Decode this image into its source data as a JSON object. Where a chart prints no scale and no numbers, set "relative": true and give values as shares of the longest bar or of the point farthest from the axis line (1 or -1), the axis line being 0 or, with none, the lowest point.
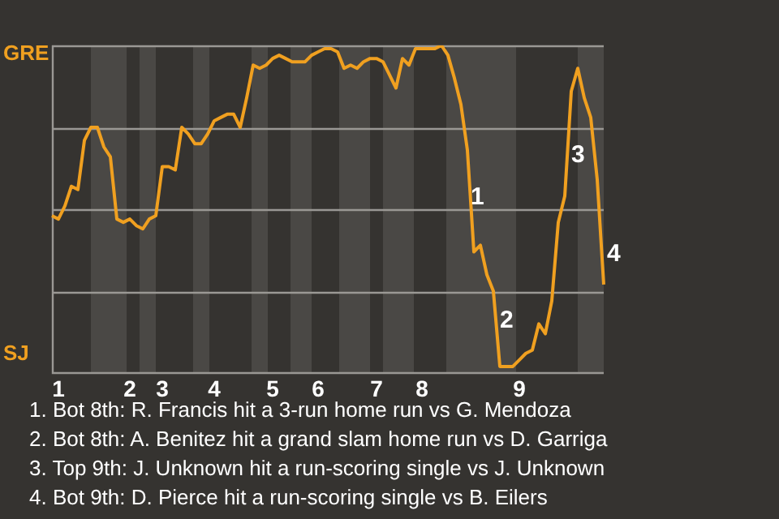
{
  "chart_data": {
    "type": "line",
    "relative": true,
    "annotations": [
      "GRE",
      "SJ",
      "1",
      "2",
      "3",
      "4",
      "1. Bot 8th: R. Francis hit a 3-run home run vs G. Mendoza",
      "2. Bot 8th: A. Benitez hit a grand slam home run vs D. Garriga",
      "3. Top 9th: J. Unknown hit a run-scoring single vs J. Unknown",
      "4. Bot 9th: D. Pierce hit a run-scoring single vs B. Eilers"
    ],
    "categories": [
      null,
      "1",
      null,
      null,
      null,
      null,
      null,
      null,
      null,
      null,
      null,
      null,
      "2",
      null,
      null,
      null,
      null,
      "3",
      null,
      null,
      null,
      null,
      null,
      null,
      null,
      "4",
      null,
      null,
      null,
      null,
      null,
      null,
      null,
      null,
      "5",
      null,
      null,
      null,
      null,
      null,
      null,
      "6",
      null,
      null,
      null,
      null,
      null,
      null,
      null,
      null,
      "7",
      null,
      null,
      null,
      null,
      null,
      null,
      "8",
      null,
      null,
      null,
      null,
      null,
      null,
      null,
      null,
      null,
      null,
      null,
      null,
      null,
      null,
      "9",
      null,
      null,
      null,
      null,
      null,
      null,
      null,
      null,
      null,
      null,
      null,
      null,
      null
    ],
    "series": [
      {
        "color": "#f0a020",
        "values": [
          0.48,
          0.47,
          0.51,
          0.57,
          0.56,
          0.71,
          0.75,
          0.75,
          0.69,
          0.66,
          0.47,
          0.46,
          0.47,
          0.45,
          0.44,
          0.47,
          0.48,
          0.63,
          0.63,
          0.62,
          0.75,
          0.73,
          0.7,
          0.7,
          0.73,
          0.77,
          0.78,
          0.79,
          0.79,
          0.75,
          0.84,
          0.94,
          0.93,
          0.94,
          0.96,
          0.97,
          0.96,
          0.95,
          0.95,
          0.95,
          0.97,
          0.98,
          0.99,
          0.99,
          0.98,
          0.93,
          0.94,
          0.93,
          0.95,
          0.96,
          0.96,
          0.95,
          0.91,
          0.87,
          0.96,
          0.94,
          0.99,
          0.99,
          0.99,
          0.99,
          1,
          0.97,
          0.9,
          0.82,
          0.68,
          0.37,
          0.39,
          0.3,
          0.25,
          0.02,
          0.02,
          0.02,
          0.04,
          0.06,
          0.07,
          0.15,
          0.12,
          0.22,
          0.46,
          0.54,
          0.86,
          0.93,
          0.84,
          0.78,
          0.59,
          0.27
        ]
      }
    ],
    "grid": true
  }
}
